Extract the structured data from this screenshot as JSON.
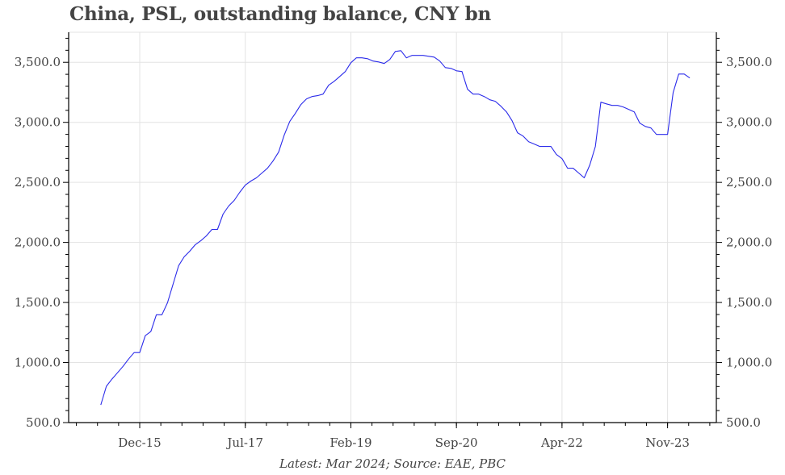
{
  "title": "China, PSL, outstanding balance, CNY bn",
  "caption": "Latest: Mar 2024; Source: EAE, PBC",
  "colors": {
    "line": "#2b2bea",
    "grid": "#e3e3e3",
    "axis": "#000000",
    "text": "#444444"
  },
  "chart_data": {
    "type": "line",
    "title": "China, PSL, outstanding balance, CNY bn",
    "xlabel": "",
    "ylabel": "",
    "ylim": [
      500,
      3750
    ],
    "yticks": [
      500,
      1000,
      1500,
      2000,
      2500,
      3000,
      3500
    ],
    "ytick_labels": [
      "500.0",
      "1,000.0",
      "1,500.0",
      "2,000.0",
      "2,500.0",
      "3,000.0",
      "3,500.0"
    ],
    "y_minor_step": 100,
    "dual_y_axis": true,
    "xticks": [
      "Dec-15",
      "Jul-17",
      "Feb-19",
      "Sep-20",
      "Apr-22",
      "Nov-23"
    ],
    "grid": true,
    "legend": null,
    "series": [
      {
        "name": "PSL outstanding balance",
        "x": [
          "May-15",
          "Jun-15",
          "Jul-15",
          "Aug-15",
          "Sep-15",
          "Oct-15",
          "Nov-15",
          "Dec-15",
          "Jan-16",
          "Feb-16",
          "Mar-16",
          "Apr-16",
          "May-16",
          "Jun-16",
          "Jul-16",
          "Aug-16",
          "Sep-16",
          "Oct-16",
          "Nov-16",
          "Dec-16",
          "Jan-17",
          "Feb-17",
          "Mar-17",
          "Apr-17",
          "May-17",
          "Jun-17",
          "Jul-17",
          "Aug-17",
          "Sep-17",
          "Oct-17",
          "Nov-17",
          "Dec-17",
          "Jan-18",
          "Feb-18",
          "Mar-18",
          "Apr-18",
          "May-18",
          "Jun-18",
          "Jul-18",
          "Aug-18",
          "Sep-18",
          "Oct-18",
          "Nov-18",
          "Dec-18",
          "Jan-19",
          "Feb-19",
          "Mar-19",
          "Apr-19",
          "May-19",
          "Jun-19",
          "Jul-19",
          "Aug-19",
          "Sep-19",
          "Oct-19",
          "Nov-19",
          "Dec-19",
          "Jan-20",
          "Feb-20",
          "Mar-20",
          "Apr-20",
          "May-20",
          "Jun-20",
          "Jul-20",
          "Aug-20",
          "Sep-20",
          "Oct-20",
          "Nov-20",
          "Dec-20",
          "Jan-21",
          "Feb-21",
          "Mar-21",
          "Apr-21",
          "May-21",
          "Jun-21",
          "Jul-21",
          "Aug-21",
          "Sep-21",
          "Oct-21",
          "Nov-21",
          "Dec-21",
          "Jan-22",
          "Feb-22",
          "Mar-22",
          "Apr-22",
          "May-22",
          "Jun-22",
          "Jul-22",
          "Aug-22",
          "Sep-22",
          "Oct-22",
          "Nov-22",
          "Dec-22",
          "Jan-23",
          "Feb-23",
          "Mar-23",
          "Apr-23",
          "May-23",
          "Jun-23",
          "Jul-23",
          "Aug-23",
          "Sep-23",
          "Oct-23",
          "Nov-23",
          "Dec-23",
          "Jan-24",
          "Feb-24",
          "Mar-24"
        ],
        "values": [
          647,
          802,
          862,
          915,
          969,
          1029,
          1083,
          1083,
          1224,
          1258,
          1398,
          1398,
          1498,
          1652,
          1807,
          1880,
          1927,
          1981,
          2015,
          2055,
          2108,
          2108,
          2236,
          2303,
          2350,
          2417,
          2477,
          2511,
          2538,
          2578,
          2618,
          2678,
          2752,
          2893,
          3007,
          3074,
          3148,
          3195,
          3215,
          3222,
          3235,
          3309,
          3342,
          3382,
          3423,
          3496,
          3537,
          3537,
          3530,
          3510,
          3503,
          3490,
          3523,
          3590,
          3597,
          3537,
          3557,
          3557,
          3557,
          3550,
          3543,
          3510,
          3456,
          3449,
          3429,
          3423,
          3275,
          3235,
          3235,
          3215,
          3188,
          3175,
          3134,
          3087,
          3014,
          2913,
          2886,
          2839,
          2819,
          2799,
          2799,
          2799,
          2732,
          2698,
          2618,
          2618,
          2578,
          2538,
          2645,
          2799,
          3168,
          3154,
          3141,
          3141,
          3128,
          3108,
          3087,
          2993,
          2966,
          2953,
          2899,
          2899,
          2899,
          3248,
          3402,
          3402,
          3369
        ]
      }
    ]
  }
}
